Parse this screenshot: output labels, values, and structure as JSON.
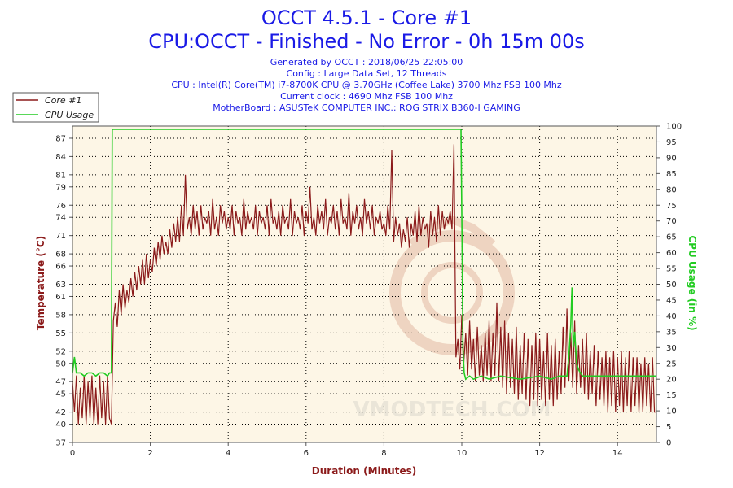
{
  "header": {
    "title": "OCCT 4.5.1 - Core #1",
    "subtitle": "CPU:OCCT - Finished - No Error - 0h 15m 00s",
    "info_lines": [
      "Generated by OCCT : 2018/06/25 22:05:00",
      "Config : Large Data Set, 12 Threads",
      "CPU : Intel(R) Core(TM) i7-8700K CPU @ 3.70GHz (Coffee Lake) 3700 Mhz FSB 100 Mhz",
      "Current clock : 4690 Mhz FSB 100 Mhz",
      "MotherBoard : ASUSTeK COMPUTER INC.: ROG STRIX B360-I GAMING"
    ]
  },
  "watermark": "VMODTECH.COM",
  "colors": {
    "title": "#1a1ae6",
    "temperature": "#8b1a1a",
    "cpu_usage": "#22cc22",
    "plot_background": "#fdf6e6",
    "grid": "#000000"
  },
  "chart_data": {
    "type": "line",
    "xlabel": "Duration (Minutes)",
    "ylabel": "Temperature (°C)",
    "y2label": "CPU Usage (in %)",
    "xlim": [
      0,
      15
    ],
    "ylim": [
      37,
      89
    ],
    "y2lim": [
      0,
      100
    ],
    "x_ticks": [
      0,
      2,
      4,
      6,
      8,
      10,
      12,
      14
    ],
    "y_ticks": [
      37,
      40,
      42,
      45,
      47,
      50,
      52,
      55,
      58,
      61,
      63,
      66,
      68,
      71,
      74,
      76,
      79,
      81,
      84,
      87
    ],
    "y2_ticks": [
      0,
      5,
      10,
      15,
      20,
      25,
      30,
      35,
      40,
      45,
      50,
      55,
      60,
      65,
      70,
      75,
      80,
      85,
      90,
      95,
      100
    ],
    "grid": true,
    "legend_position": "top-left",
    "series": [
      {
        "name": "Core #1",
        "axis": "left",
        "x": [
          0,
          0.05,
          0.1,
          0.15,
          0.2,
          0.25,
          0.3,
          0.35,
          0.4,
          0.45,
          0.5,
          0.55,
          0.6,
          0.65,
          0.7,
          0.75,
          0.8,
          0.85,
          0.9,
          0.95,
          1.0,
          1.05,
          1.1,
          1.15,
          1.2,
          1.25,
          1.3,
          1.35,
          1.4,
          1.45,
          1.5,
          1.55,
          1.6,
          1.65,
          1.7,
          1.75,
          1.8,
          1.85,
          1.9,
          1.95,
          2.0,
          2.05,
          2.1,
          2.15,
          2.2,
          2.25,
          2.3,
          2.35,
          2.4,
          2.45,
          2.5,
          2.55,
          2.6,
          2.65,
          2.7,
          2.75,
          2.8,
          2.85,
          2.9,
          2.95,
          3.0,
          3.05,
          3.1,
          3.15,
          3.2,
          3.25,
          3.3,
          3.35,
          3.4,
          3.45,
          3.5,
          3.55,
          3.6,
          3.65,
          3.7,
          3.75,
          3.8,
          3.85,
          3.9,
          3.95,
          4.0,
          4.05,
          4.1,
          4.15,
          4.2,
          4.25,
          4.3,
          4.35,
          4.4,
          4.45,
          4.5,
          4.55,
          4.6,
          4.65,
          4.7,
          4.75,
          4.8,
          4.85,
          4.9,
          4.95,
          5.0,
          5.05,
          5.1,
          5.15,
          5.2,
          5.25,
          5.3,
          5.35,
          5.4,
          5.45,
          5.5,
          5.55,
          5.6,
          5.65,
          5.7,
          5.75,
          5.8,
          5.85,
          5.9,
          5.95,
          6.0,
          6.05,
          6.1,
          6.15,
          6.2,
          6.25,
          6.3,
          6.35,
          6.4,
          6.45,
          6.5,
          6.55,
          6.6,
          6.65,
          6.7,
          6.75,
          6.8,
          6.85,
          6.9,
          6.95,
          7.0,
          7.05,
          7.1,
          7.15,
          7.2,
          7.25,
          7.3,
          7.35,
          7.4,
          7.45,
          7.5,
          7.55,
          7.6,
          7.65,
          7.7,
          7.75,
          7.8,
          7.85,
          7.9,
          7.95,
          8.0,
          8.05,
          8.1,
          8.15,
          8.2,
          8.25,
          8.3,
          8.35,
          8.4,
          8.45,
          8.5,
          8.55,
          8.6,
          8.65,
          8.7,
          8.75,
          8.8,
          8.85,
          8.9,
          8.95,
          9.0,
          9.05,
          9.1,
          9.15,
          9.2,
          9.25,
          9.3,
          9.35,
          9.4,
          9.45,
          9.5,
          9.55,
          9.6,
          9.65,
          9.7,
          9.75,
          9.8,
          9.85,
          9.9,
          9.95,
          10.0,
          10.05,
          10.1,
          10.15,
          10.2,
          10.25,
          10.3,
          10.35,
          10.4,
          10.45,
          10.5,
          10.55,
          10.6,
          10.65,
          10.7,
          10.75,
          10.8,
          10.85,
          10.9,
          10.95,
          11.0,
          11.05,
          11.1,
          11.15,
          11.2,
          11.25,
          11.3,
          11.35,
          11.4,
          11.45,
          11.5,
          11.55,
          11.6,
          11.65,
          11.7,
          11.75,
          11.8,
          11.85,
          11.9,
          11.95,
          12.0,
          12.05,
          12.1,
          12.15,
          12.2,
          12.25,
          12.3,
          12.35,
          12.4,
          12.45,
          12.5,
          12.55,
          12.6,
          12.65,
          12.7,
          12.75,
          12.8,
          12.85,
          12.9,
          12.95,
          13.0,
          13.05,
          13.1,
          13.15,
          13.2,
          13.25,
          13.3,
          13.35,
          13.4,
          13.45,
          13.5,
          13.55,
          13.6,
          13.65,
          13.7,
          13.75,
          13.8,
          13.85,
          13.9,
          13.95,
          14.0,
          14.05,
          14.1,
          14.15,
          14.2,
          14.25,
          14.3,
          14.35,
          14.4,
          14.45,
          14.5,
          14.55,
          14.6,
          14.65,
          14.7,
          14.75,
          14.8,
          14.85,
          14.9,
          14.95,
          15.0
        ],
        "values": [
          47,
          42,
          48,
          40,
          46,
          41,
          48,
          40,
          47,
          41,
          48,
          40,
          46,
          40,
          48,
          41,
          47,
          40,
          48,
          41,
          40,
          57,
          60,
          56,
          62,
          58,
          63,
          59,
          62,
          60,
          64,
          61,
          65,
          62,
          66,
          63,
          67,
          63,
          68,
          64,
          67,
          65,
          69,
          66,
          70,
          67,
          71,
          68,
          70,
          68,
          72,
          69,
          73,
          70,
          74,
          70,
          76,
          71,
          81,
          72,
          74,
          71,
          76,
          72,
          75,
          71,
          76,
          72,
          74,
          73,
          75,
          71,
          77,
          72,
          74,
          71,
          76,
          73,
          75,
          72,
          74,
          72,
          76,
          71,
          75,
          73,
          74,
          71,
          77,
          72,
          75,
          73,
          74,
          72,
          76,
          71,
          75,
          73,
          74,
          72,
          76,
          71,
          77,
          73,
          74,
          72,
          75,
          71,
          76,
          73,
          74,
          72,
          77,
          71,
          75,
          73,
          74,
          72,
          76,
          71,
          75,
          73,
          79,
          72,
          74,
          71,
          76,
          73,
          75,
          72,
          77,
          71,
          74,
          73,
          76,
          72,
          75,
          71,
          77,
          73,
          74,
          72,
          78,
          71,
          75,
          73,
          76,
          72,
          74,
          71,
          77,
          73,
          75,
          72,
          76,
          71,
          74,
          73,
          75,
          72,
          73,
          71,
          76,
          72,
          85,
          70,
          74,
          71,
          73,
          69,
          72,
          70,
          74,
          69,
          73,
          71,
          75,
          70,
          76,
          71,
          74,
          72,
          73,
          69,
          75,
          71,
          74,
          70,
          76,
          71,
          75,
          72,
          74,
          73,
          75,
          72,
          86,
          51,
          54,
          49,
          58,
          50,
          55,
          48,
          57,
          49,
          54,
          47,
          56,
          48,
          53,
          47,
          55,
          48,
          57,
          47,
          55,
          48,
          60,
          47,
          56,
          46,
          57,
          45,
          55,
          46,
          54,
          45,
          56,
          44,
          53,
          45,
          55,
          44,
          54,
          43,
          53,
          44,
          55,
          43,
          54,
          44,
          52,
          43,
          55,
          44,
          53,
          43,
          54,
          44,
          52,
          45,
          56,
          46,
          59,
          47,
          55,
          46,
          57,
          45,
          53,
          46,
          54,
          45,
          55,
          44,
          52,
          45,
          53,
          43,
          52,
          44,
          51,
          43,
          52,
          42,
          51,
          43,
          52,
          42,
          51,
          43,
          52,
          42,
          51,
          43,
          52,
          42,
          51,
          43,
          51,
          42,
          50,
          42,
          51,
          43,
          50,
          42,
          51,
          42,
          42
        ]
      },
      {
        "name": "CPU Usage",
        "axis": "right",
        "x": [
          0,
          0.05,
          0.1,
          0.2,
          0.3,
          0.4,
          0.5,
          0.6,
          0.7,
          0.8,
          0.9,
          0.95,
          1.0,
          1.02,
          9.98,
          10.0,
          10.03,
          10.06,
          10.1,
          10.2,
          10.3,
          10.5,
          10.7,
          11.0,
          11.5,
          12.0,
          12.3,
          12.5,
          12.7,
          12.75,
          12.8,
          12.83,
          12.86,
          12.9,
          12.95,
          13.0,
          13.05,
          13.1,
          13.2,
          13.5,
          14.0,
          14.5,
          15.0
        ],
        "values": [
          22,
          27,
          22,
          22,
          21,
          22,
          22,
          21,
          22,
          22,
          21,
          22,
          22,
          99,
          99,
          72,
          30,
          22,
          20,
          21,
          20,
          21,
          20,
          21,
          20,
          21,
          20,
          21,
          21,
          27,
          37,
          49,
          30,
          35,
          25,
          23,
          22,
          21,
          21,
          21,
          21,
          21,
          21
        ]
      }
    ]
  }
}
